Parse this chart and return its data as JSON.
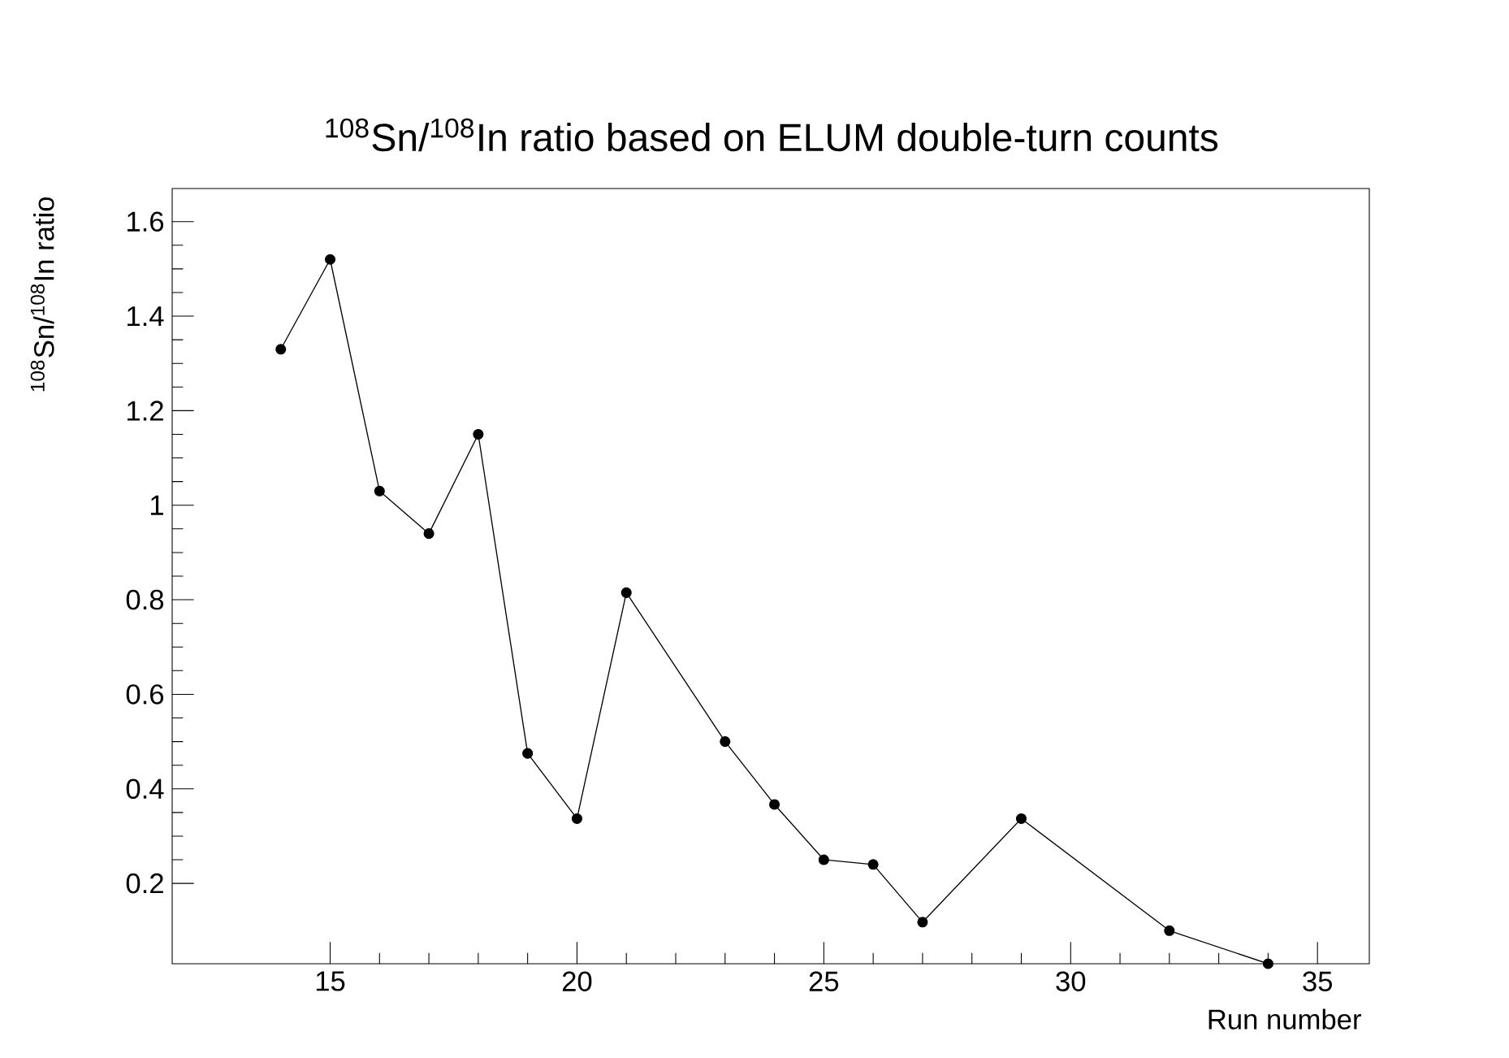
{
  "chart_data": {
    "type": "line",
    "title": "$^{108}$Sn/$^{108}$In ratio based on ELUM double-turn counts",
    "xlabel": "Run number",
    "ylabel": "$^{108}$Sn/$^{108}$In ratio",
    "x": [
      14,
      15,
      16,
      17,
      18,
      19,
      20,
      21,
      23,
      24,
      25,
      26,
      27,
      29,
      32,
      34
    ],
    "values": [
      1.33,
      1.52,
      1.03,
      0.94,
      1.15,
      0.475,
      0.337,
      0.815,
      0.5,
      0.367,
      0.25,
      0.24,
      0.118,
      0.337,
      0.1,
      0.03
    ],
    "color": "#000000",
    "marker": "circle",
    "line_style": "solid",
    "xlim": [
      11.8,
      36.05
    ],
    "ylim": [
      0.03,
      1.67
    ],
    "xticks": [
      15,
      20,
      25,
      30,
      35
    ],
    "yticks": [
      0.2,
      0.4,
      0.6,
      0.8,
      1,
      1.2,
      1.4,
      1.6
    ]
  }
}
